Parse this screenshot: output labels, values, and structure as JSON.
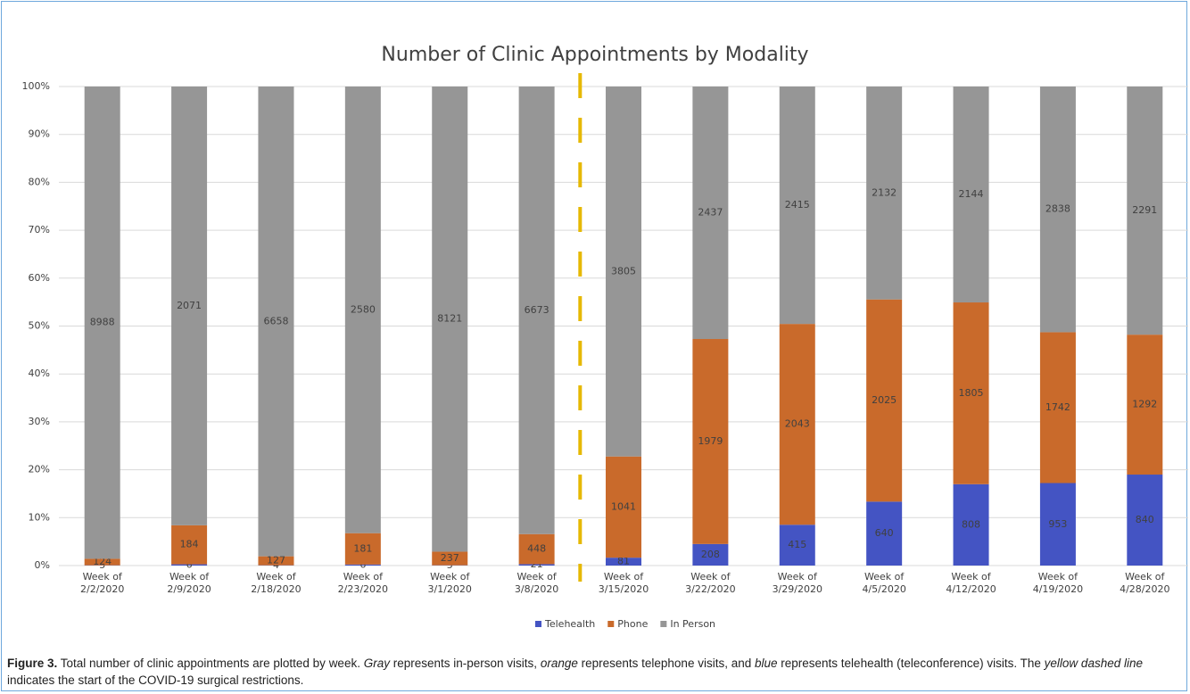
{
  "chart_data": {
    "type": "bar",
    "stacked": "percent",
    "title": "Number of Clinic Appointments by Modality",
    "categories": [
      "Week of 2/2/2020",
      "Week of 2/9/2020",
      "Week of 2/18/2020",
      "Week of 2/23/2020",
      "Week of 3/1/2020",
      "Week of 3/8/2020",
      "Week of 3/15/2020",
      "Week of 3/22/2020",
      "Week of 3/29/2020",
      "Week of 4/5/2020",
      "Week of 4/12/2020",
      "Week of 4/19/2020",
      "Week of 4/28/2020"
    ],
    "series": [
      {
        "name": "Telehealth",
        "color": "#4454c3",
        "values": [
          5,
          6,
          4,
          6,
          5,
          21,
          81,
          208,
          415,
          640,
          808,
          953,
          840
        ]
      },
      {
        "name": "Phone",
        "color": "#c96a2b",
        "values": [
          124,
          184,
          127,
          181,
          237,
          448,
          1041,
          1979,
          2043,
          2025,
          1805,
          1742,
          1292
        ]
      },
      {
        "name": "In Person",
        "color": "#969696",
        "values": [
          8988,
          2071,
          6658,
          2580,
          8121,
          6673,
          3805,
          2437,
          2415,
          2132,
          2144,
          2838,
          2291
        ]
      }
    ],
    "ylim": [
      0,
      100
    ],
    "yticks": [
      {
        "value": 0,
        "label": "0%"
      },
      {
        "value": 10,
        "label": "10%"
      },
      {
        "value": 20,
        "label": "20%"
      },
      {
        "value": 30,
        "label": "30%"
      },
      {
        "value": 40,
        "label": "40%"
      },
      {
        "value": 50,
        "label": "50%"
      },
      {
        "value": 60,
        "label": "60%"
      },
      {
        "value": 70,
        "label": "70%"
      },
      {
        "value": 80,
        "label": "80%"
      },
      {
        "value": 90,
        "label": "90%"
      },
      {
        "value": 100,
        "label": "100%"
      }
    ],
    "grid": true,
    "legend": "bottom"
  },
  "caption": {
    "label": "Figure 3.",
    "parts": [
      " Total number of clinic appointments are plotted by week. ",
      "Gray",
      " represents in-person visits, ",
      "orange",
      " represents telephone visits, and ",
      "blue",
      " represents telehealth (teleconference) visits. The ",
      "yellow dashed line",
      " indicates the start of the COVID-19 surgical restrictions."
    ]
  }
}
